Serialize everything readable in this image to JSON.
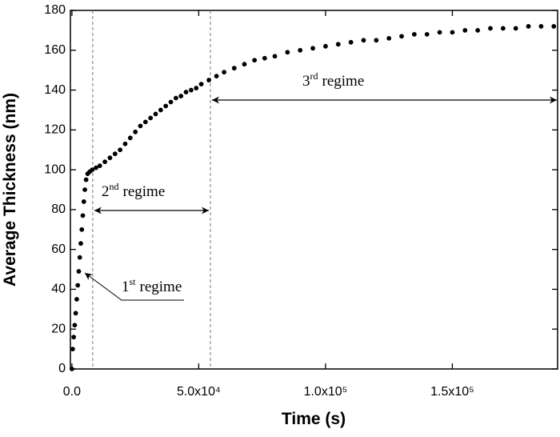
{
  "chart_data": {
    "type": "scatter",
    "xlabel": "Time (s)",
    "ylabel": "Average Thickness (nm)",
    "color": "#000000",
    "x": [
      0,
      300,
      700,
      1100,
      1500,
      1900,
      2300,
      2700,
      3100,
      3500,
      3900,
      4300,
      4700,
      5100,
      5600,
      6200,
      7000,
      8000,
      9500,
      11000,
      13000,
      15000,
      17000,
      19000,
      21000,
      23000,
      25000,
      27000,
      29000,
      31000,
      33000,
      35000,
      37000,
      39000,
      41000,
      43000,
      45000,
      47000,
      49000,
      51000,
      54000,
      57000,
      60000,
      64000,
      68000,
      72000,
      76000,
      80000,
      85000,
      90000,
      95000,
      100000,
      105000,
      110000,
      115000,
      120000,
      125000,
      130000,
      135000,
      140000,
      145000,
      150000,
      155000,
      160000,
      165000,
      170000,
      175000,
      180000,
      185000,
      190000
    ],
    "values": [
      0,
      10,
      16,
      22,
      28,
      35,
      42,
      49,
      56,
      63,
      70,
      77,
      84,
      90,
      95,
      98,
      99,
      100,
      101,
      102,
      104,
      106,
      108,
      110,
      113,
      116,
      119,
      122,
      124,
      126,
      128,
      130,
      132,
      134,
      136,
      137,
      139,
      140,
      141,
      143,
      145,
      147,
      149,
      151,
      153,
      155,
      156,
      157,
      159,
      160,
      161,
      162,
      163,
      164,
      165,
      165,
      166,
      167,
      168,
      168,
      169,
      169,
      170,
      170,
      171,
      171,
      171,
      172,
      172,
      172
    ],
    "xlim": [
      -600,
      191500
    ],
    "ylim": [
      0,
      180
    ],
    "xticks": [
      {
        "value": 0,
        "label": "0.0"
      },
      {
        "value": 50000,
        "label": "5.0x10⁴"
      },
      {
        "value": 100000,
        "label": "1.0x10⁵"
      },
      {
        "value": 150000,
        "label": "1.5x10⁵"
      }
    ],
    "yticks": [
      0,
      20,
      40,
      60,
      80,
      100,
      120,
      140,
      160,
      180
    ],
    "regime_boundaries": [
      8200,
      54600
    ],
    "annotations": [
      {
        "number": "1",
        "suffix": "st",
        "text": "regime"
      },
      {
        "number": "2",
        "suffix": "nd",
        "text": "regime"
      },
      {
        "number": "3",
        "suffix": "rd",
        "text": "regime"
      }
    ]
  }
}
